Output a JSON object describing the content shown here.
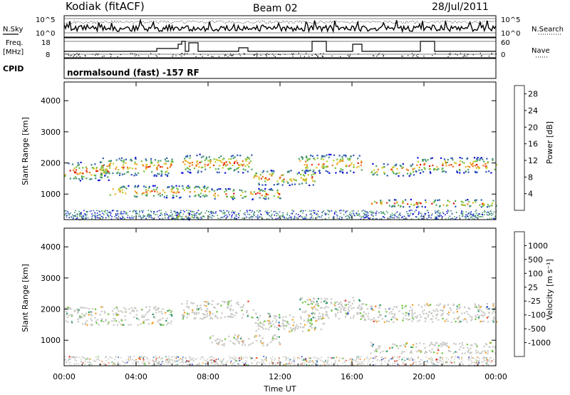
{
  "header": {
    "station": "Kodiak (fitACF)",
    "beam": "Beam 02",
    "date": "28/Jul/2011",
    "cpid_label": "CPID",
    "program": "normalsound (fast) -157 RF"
  },
  "summary": {
    "nsky_label": "N.Sky",
    "nsearch_label": "N.Search",
    "freq_label": "Freq.",
    "freq_unit": "[MHz]",
    "nave_label": "Nave",
    "noise_tick_top": "10^5",
    "noise_tick_bottom": "10^0",
    "freq_tick_top": "18",
    "freq_tick_bottom": "8",
    "nave_tick_top": "60",
    "nave_tick_bottom": "0"
  },
  "chart_data": [
    {
      "type": "heatmap",
      "name": "power",
      "ylabel": "Slant Range [km]",
      "xlabel": "",
      "x_ticks": [
        "00:00",
        "04:00",
        "08:00",
        "12:00",
        "16:00",
        "20:00",
        "00:00"
      ],
      "y_ticks": [
        1000,
        2000,
        3000,
        4000
      ],
      "ylim": [
        180,
        4600
      ],
      "xlim": [
        0,
        24
      ],
      "colorbar": {
        "label": "Power [dB]",
        "ticks": [
          "4",
          "8",
          "12",
          "16",
          "20",
          "24",
          "28"
        ],
        "colors": [
          "#0a0ad8",
          "#2f58b5",
          "#3f8a7a",
          "#4ea65e",
          "#76c23e",
          "#c8cc28",
          "#f1b028",
          "#f07a1e",
          "#ea3a18",
          "#e00c0c"
        ]
      },
      "bands": [
        {
          "t0": 0.0,
          "t1": 2.5,
          "r0": 1450,
          "r1": 2050
        },
        {
          "t0": 2.0,
          "t1": 6.0,
          "r0": 1600,
          "r1": 2200
        },
        {
          "t0": 6.5,
          "t1": 10.5,
          "r0": 1700,
          "r1": 2300
        },
        {
          "t0": 10.5,
          "t1": 14.0,
          "r0": 1300,
          "r1": 1800
        },
        {
          "t0": 13.0,
          "t1": 16.5,
          "r0": 1700,
          "r1": 2300
        },
        {
          "t0": 17.0,
          "t1": 19.5,
          "r0": 1600,
          "r1": 2000
        },
        {
          "t0": 19.5,
          "t1": 24.0,
          "r0": 1700,
          "r1": 2200
        },
        {
          "t0": 8.0,
          "t1": 12.0,
          "r0": 850,
          "r1": 1200
        },
        {
          "t0": 2.5,
          "t1": 8.0,
          "r0": 900,
          "r1": 1300
        },
        {
          "t0": 17.0,
          "t1": 20.5,
          "r0": 600,
          "r1": 850
        },
        {
          "t0": 20.5,
          "t1": 24.0,
          "r0": 600,
          "r1": 850
        },
        {
          "t0": 6.0,
          "t1": 7.5,
          "r0": 200,
          "r1": 450
        }
      ]
    },
    {
      "type": "heatmap",
      "name": "velocity",
      "ylabel": "Slant Range [km]",
      "xlabel": "Time UT",
      "x_ticks": [
        "00:00",
        "04:00",
        "08:00",
        "12:00",
        "16:00",
        "20:00",
        "00:00"
      ],
      "y_ticks": [
        1000,
        2000,
        3000,
        4000
      ],
      "ylim": [
        180,
        4600
      ],
      "xlim": [
        0,
        24
      ],
      "colorbar": {
        "label": "Velocity [m s⁻¹]",
        "ticks": [
          "1000",
          "500",
          "100",
          "25",
          "-25",
          "-100",
          "-500",
          "-1000"
        ],
        "colors": [
          "#1c2fc8",
          "#2a6fb0",
          "#2f9a6a",
          "#6cc43a",
          "#c8c8c4",
          "#f5a020",
          "#f07020",
          "#e83a18",
          "#e00a0a"
        ]
      },
      "bands": [
        {
          "t0": 0.0,
          "t1": 6.0,
          "r0": 1500,
          "r1": 2100
        },
        {
          "t0": 6.5,
          "t1": 10.5,
          "r0": 1700,
          "r1": 2300
        },
        {
          "t0": 10.5,
          "t1": 14.5,
          "r0": 1300,
          "r1": 1900
        },
        {
          "t0": 13.0,
          "t1": 16.5,
          "r0": 1700,
          "r1": 2400
        },
        {
          "t0": 16.5,
          "t1": 24.0,
          "r0": 1600,
          "r1": 2200
        },
        {
          "t0": 8.0,
          "t1": 12.0,
          "r0": 850,
          "r1": 1200
        },
        {
          "t0": 17.0,
          "t1": 24.0,
          "r0": 600,
          "r1": 950
        }
      ]
    }
  ]
}
